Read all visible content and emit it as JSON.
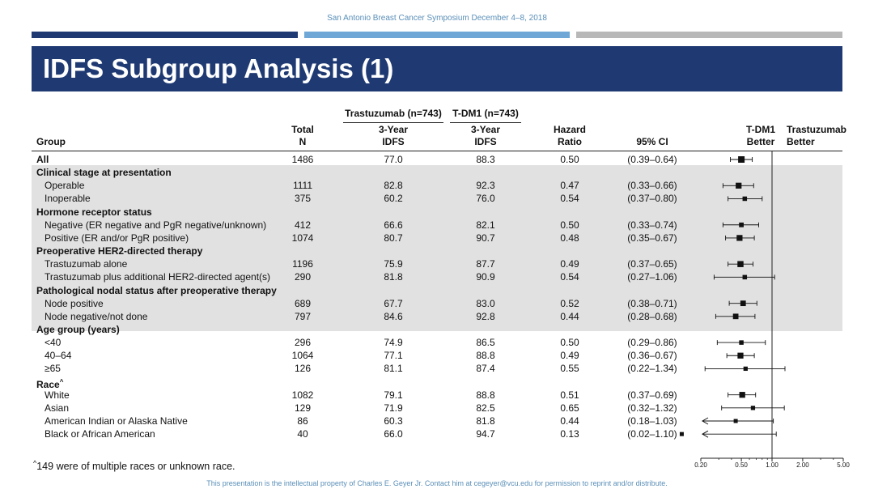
{
  "top_note": "San Antonio Breast Cancer Symposium December 4–8, 2018",
  "title": "IDFS Subgroup Analysis (1)",
  "headers": {
    "trastuzumab_group": "Trastuzumab (n=743)",
    "tdm1_group": "T-DM1 (n=743)",
    "group": "Group",
    "total_n_1": "Total",
    "total_n_2": "N",
    "idfs_1": "3-Year",
    "idfs_2": "IDFS",
    "idfs_b1": "3-Year",
    "idfs_b2": "IDFS",
    "hr_1": "Hazard",
    "hr_2": "Ratio",
    "ci": "95% CI",
    "better_left_1": "T-DM1",
    "better_left_2": "Better",
    "better_right_1": "Trastuzumab",
    "better_right_2": "Better"
  },
  "footnote": "^149 were of multiple races or unknown race.",
  "footer": "This presentation is the intellectual property of Charles E. Geyer Jr. Contact him at cegeyer@vcu.edu for permission to reprint and/or distribute.",
  "colors": {
    "banner": "#1f3a73",
    "bar_dark": "#1f3a73",
    "bar_light": "#6fa8d6",
    "bar_gray": "#b8b8b8",
    "shade": "#e1e1e1",
    "note_text": "#5a8fb8"
  },
  "chart_data": {
    "type": "forest",
    "x_axis": {
      "scale": "log",
      "range": [
        0.2,
        5.0
      ],
      "ticks": [
        "0.20",
        "0.50",
        "1.00",
        "2.00",
        "5.00"
      ],
      "reference_line": 1.0
    },
    "rows": [
      {
        "label": "All",
        "heading": true,
        "total_n": "1486",
        "trastuzumab_idfs": "77.0",
        "tdm1_idfs": "88.3",
        "hr": "0.50",
        "ci": "(0.39–0.64)",
        "hr_value": 0.5,
        "ci_low": 0.39,
        "ci_high": 0.64,
        "marker": 1.0
      },
      {
        "label": "Clinical stage at presentation",
        "heading": true
      },
      {
        "label": "Operable",
        "total_n": "1111",
        "trastuzumab_idfs": "82.8",
        "tdm1_idfs": "92.3",
        "hr": "0.47",
        "ci": "(0.33–0.66)",
        "hr_value": 0.47,
        "ci_low": 0.33,
        "ci_high": 0.66,
        "marker": 0.85
      },
      {
        "label": "Inoperable",
        "total_n": "375",
        "trastuzumab_idfs": "60.2",
        "tdm1_idfs": "76.0",
        "hr": "0.54",
        "ci": "(0.37–0.80)",
        "hr_value": 0.54,
        "ci_low": 0.37,
        "ci_high": 0.8,
        "marker": 0.5
      },
      {
        "label": "Hormone receptor status",
        "heading": true
      },
      {
        "label": "Negative (ER negative and PgR negative/unknown)",
        "total_n": "412",
        "trastuzumab_idfs": "66.6",
        "tdm1_idfs": "82.1",
        "hr": "0.50",
        "ci": "(0.33–0.74)",
        "hr_value": 0.5,
        "ci_low": 0.33,
        "ci_high": 0.74,
        "marker": 0.55
      },
      {
        "label": "Positive (ER and/or PgR positive)",
        "total_n": "1074",
        "trastuzumab_idfs": "80.7",
        "tdm1_idfs": "90.7",
        "hr": "0.48",
        "ci": "(0.35–0.67)",
        "hr_value": 0.48,
        "ci_low": 0.35,
        "ci_high": 0.67,
        "marker": 0.85
      },
      {
        "label": "Preoperative HER2-directed therapy",
        "heading": true
      },
      {
        "label": "Trastuzumab alone",
        "total_n": "1196",
        "trastuzumab_idfs": "75.9",
        "tdm1_idfs": "87.7",
        "hr": "0.49",
        "ci": "(0.37–0.65)",
        "hr_value": 0.49,
        "ci_low": 0.37,
        "ci_high": 0.65,
        "marker": 0.9
      },
      {
        "label": "Trastuzumab plus additional HER2-directed agent(s)",
        "total_n": "290",
        "trastuzumab_idfs": "81.8",
        "tdm1_idfs": "90.9",
        "hr": "0.54",
        "ci": "(0.27–1.06)",
        "hr_value": 0.54,
        "ci_low": 0.27,
        "ci_high": 1.06,
        "marker": 0.5
      },
      {
        "label": "Pathological nodal status after preoperative therapy",
        "heading": true
      },
      {
        "label": "Node positive",
        "total_n": "689",
        "trastuzumab_idfs": "67.7",
        "tdm1_idfs": "83.0",
        "hr": "0.52",
        "ci": "(0.38–0.71)",
        "hr_value": 0.52,
        "ci_low": 0.38,
        "ci_high": 0.71,
        "marker": 0.75
      },
      {
        "label": "Node negative/not done",
        "total_n": "797",
        "trastuzumab_idfs": "84.6",
        "tdm1_idfs": "92.8",
        "hr": "0.44",
        "ci": "(0.28–0.68)",
        "hr_value": 0.44,
        "ci_low": 0.28,
        "ci_high": 0.68,
        "marker": 0.75
      },
      {
        "label": "Age group (years)",
        "heading": true
      },
      {
        "label": "<40",
        "total_n": "296",
        "trastuzumab_idfs": "74.9",
        "tdm1_idfs": "86.5",
        "hr": "0.50",
        "ci": "(0.29–0.86)",
        "hr_value": 0.5,
        "ci_low": 0.29,
        "ci_high": 0.86,
        "marker": 0.5
      },
      {
        "label": "40–64",
        "total_n": "1064",
        "trastuzumab_idfs": "77.1",
        "tdm1_idfs": "88.8",
        "hr": "0.49",
        "ci": "(0.36–0.67)",
        "hr_value": 0.49,
        "ci_low": 0.36,
        "ci_high": 0.67,
        "marker": 0.85
      },
      {
        "label": "≥65",
        "total_n": "126",
        "trastuzumab_idfs": "81.1",
        "tdm1_idfs": "87.4",
        "hr": "0.55",
        "ci": "(0.22–1.34)",
        "hr_value": 0.55,
        "ci_low": 0.22,
        "ci_high": 1.34,
        "marker": 0.45
      },
      {
        "label": "Race",
        "label_sup": "^",
        "heading": true
      },
      {
        "label": "White",
        "total_n": "1082",
        "trastuzumab_idfs": "79.1",
        "tdm1_idfs": "88.8",
        "hr": "0.51",
        "ci": "(0.37–0.69)",
        "hr_value": 0.51,
        "ci_low": 0.37,
        "ci_high": 0.69,
        "marker": 0.85
      },
      {
        "label": "Asian",
        "total_n": "129",
        "trastuzumab_idfs": "71.9",
        "tdm1_idfs": "82.5",
        "hr": "0.65",
        "ci": "(0.32–1.32)",
        "hr_value": 0.65,
        "ci_low": 0.32,
        "ci_high": 1.32,
        "marker": 0.45
      },
      {
        "label": "American Indian or Alaska Native",
        "total_n": "86",
        "trastuzumab_idfs": "60.3",
        "tdm1_idfs": "81.8",
        "hr": "0.44",
        "ci": "(0.18–1.03)",
        "hr_value": 0.44,
        "ci_low": 0.18,
        "ci_high": 1.03,
        "marker": 0.4,
        "arrow_left": true
      },
      {
        "label": "Black or African American",
        "total_n": "40",
        "trastuzumab_idfs": "66.0",
        "tdm1_idfs": "94.7",
        "hr": "0.13",
        "ci": "(0.02–1.10)",
        "hr_value": 0.13,
        "ci_low": 0.02,
        "ci_high": 1.1,
        "marker": 0.4,
        "arrow_left": true
      }
    ]
  }
}
